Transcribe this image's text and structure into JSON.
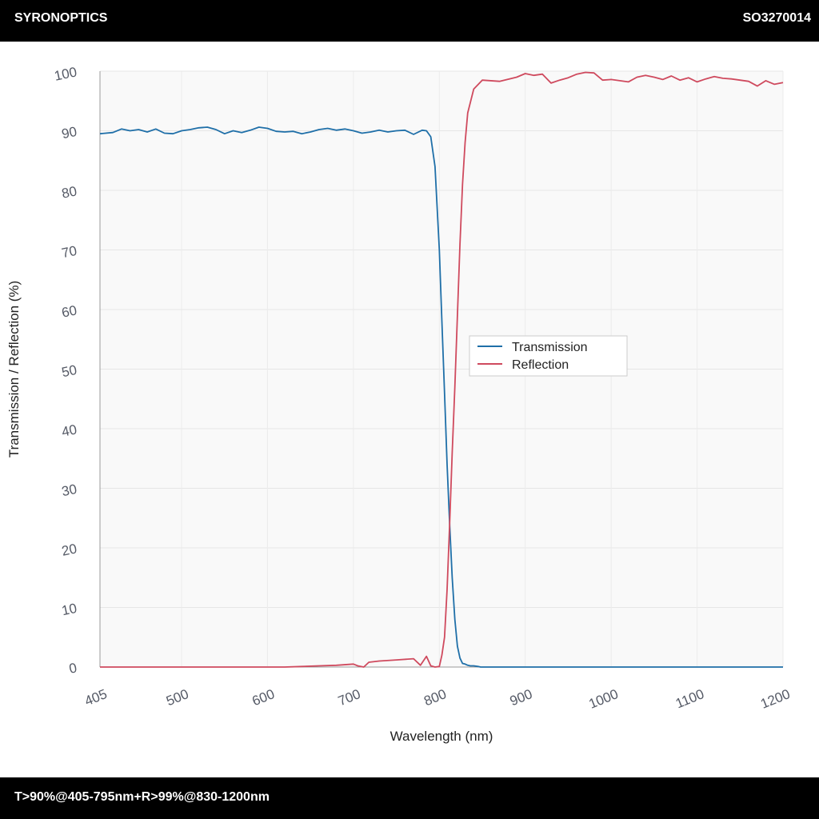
{
  "header": {
    "brand": "SYRONOPTICS",
    "part_number": "SO3270014"
  },
  "footer": {
    "spec": "T>90%@405-795nm+R>99%@830-1200nm"
  },
  "chart_data": {
    "type": "line",
    "xlabel": "Wavelength (nm)",
    "ylabel": "Transmission / Reflection (%)",
    "xlim": [
      405,
      1200
    ],
    "ylim": [
      0,
      100
    ],
    "x_ticks": [
      405,
      500,
      600,
      700,
      800,
      900,
      1000,
      1100,
      1200
    ],
    "y_ticks": [
      0,
      10,
      20,
      30,
      40,
      50,
      60,
      70,
      80,
      90,
      100
    ],
    "grid": true,
    "legend_position": "center-right",
    "series": [
      {
        "name": "Transmission",
        "color": "#1f6fa8",
        "x": [
          405,
          420,
          430,
          440,
          450,
          460,
          470,
          480,
          490,
          500,
          510,
          520,
          530,
          540,
          550,
          560,
          570,
          580,
          590,
          600,
          610,
          620,
          630,
          640,
          650,
          660,
          670,
          680,
          690,
          700,
          710,
          720,
          730,
          740,
          750,
          760,
          770,
          780,
          785,
          790,
          795,
          800,
          803,
          806,
          809,
          812,
          815,
          818,
          821,
          824,
          827,
          830,
          833,
          836,
          840,
          845,
          848,
          850,
          900,
          1000,
          1100,
          1200
        ],
        "y": [
          89.5,
          89.7,
          90.3,
          90.0,
          90.2,
          89.8,
          90.3,
          89.6,
          89.5,
          90.0,
          90.2,
          90.5,
          90.6,
          90.2,
          89.5,
          90.0,
          89.7,
          90.1,
          90.6,
          90.4,
          89.9,
          89.8,
          89.9,
          89.5,
          89.8,
          90.2,
          90.4,
          90.1,
          90.3,
          90.0,
          89.6,
          89.8,
          90.1,
          89.8,
          90.0,
          90.1,
          89.4,
          90.1,
          90.0,
          89.0,
          84.0,
          70.0,
          58.0,
          46.0,
          34.0,
          24.0,
          15.0,
          8.0,
          3.5,
          1.5,
          0.6,
          0.5,
          0.3,
          0.2,
          0.2,
          0.1,
          0.0,
          0.0,
          0.0,
          0.0,
          0.0,
          0.0
        ]
      },
      {
        "name": "Reflection",
        "color": "#cf4a5e",
        "x": [
          405,
          500,
          600,
          620,
          640,
          660,
          680,
          700,
          705,
          712,
          718,
          730,
          750,
          770,
          778,
          785,
          790,
          795,
          800,
          803,
          806,
          809,
          812,
          815,
          818,
          821,
          824,
          827,
          830,
          833,
          840,
          850,
          870,
          890,
          900,
          910,
          920,
          930,
          940,
          950,
          960,
          970,
          980,
          990,
          1000,
          1010,
          1020,
          1030,
          1040,
          1050,
          1060,
          1070,
          1080,
          1090,
          1100,
          1110,
          1120,
          1130,
          1140,
          1150,
          1160,
          1170,
          1180,
          1190,
          1200
        ],
        "y": [
          0.0,
          0.0,
          0.0,
          0.0,
          0.1,
          0.2,
          0.3,
          0.5,
          0.2,
          0.0,
          0.8,
          1.0,
          1.2,
          1.4,
          0.3,
          1.8,
          0.2,
          0.0,
          0.1,
          2.0,
          5.0,
          13.0,
          24.0,
          36.0,
          47.0,
          59.0,
          71.0,
          81.0,
          88.0,
          93.0,
          97.0,
          98.5,
          98.3,
          99.0,
          99.6,
          99.3,
          99.5,
          98.0,
          98.5,
          98.9,
          99.5,
          99.8,
          99.7,
          98.5,
          98.6,
          98.4,
          98.2,
          99.0,
          99.3,
          99.0,
          98.6,
          99.2,
          98.5,
          98.9,
          98.2,
          98.7,
          99.1,
          98.8,
          98.7,
          98.5,
          98.3,
          97.5,
          98.4,
          97.8,
          98.1
        ]
      }
    ]
  }
}
